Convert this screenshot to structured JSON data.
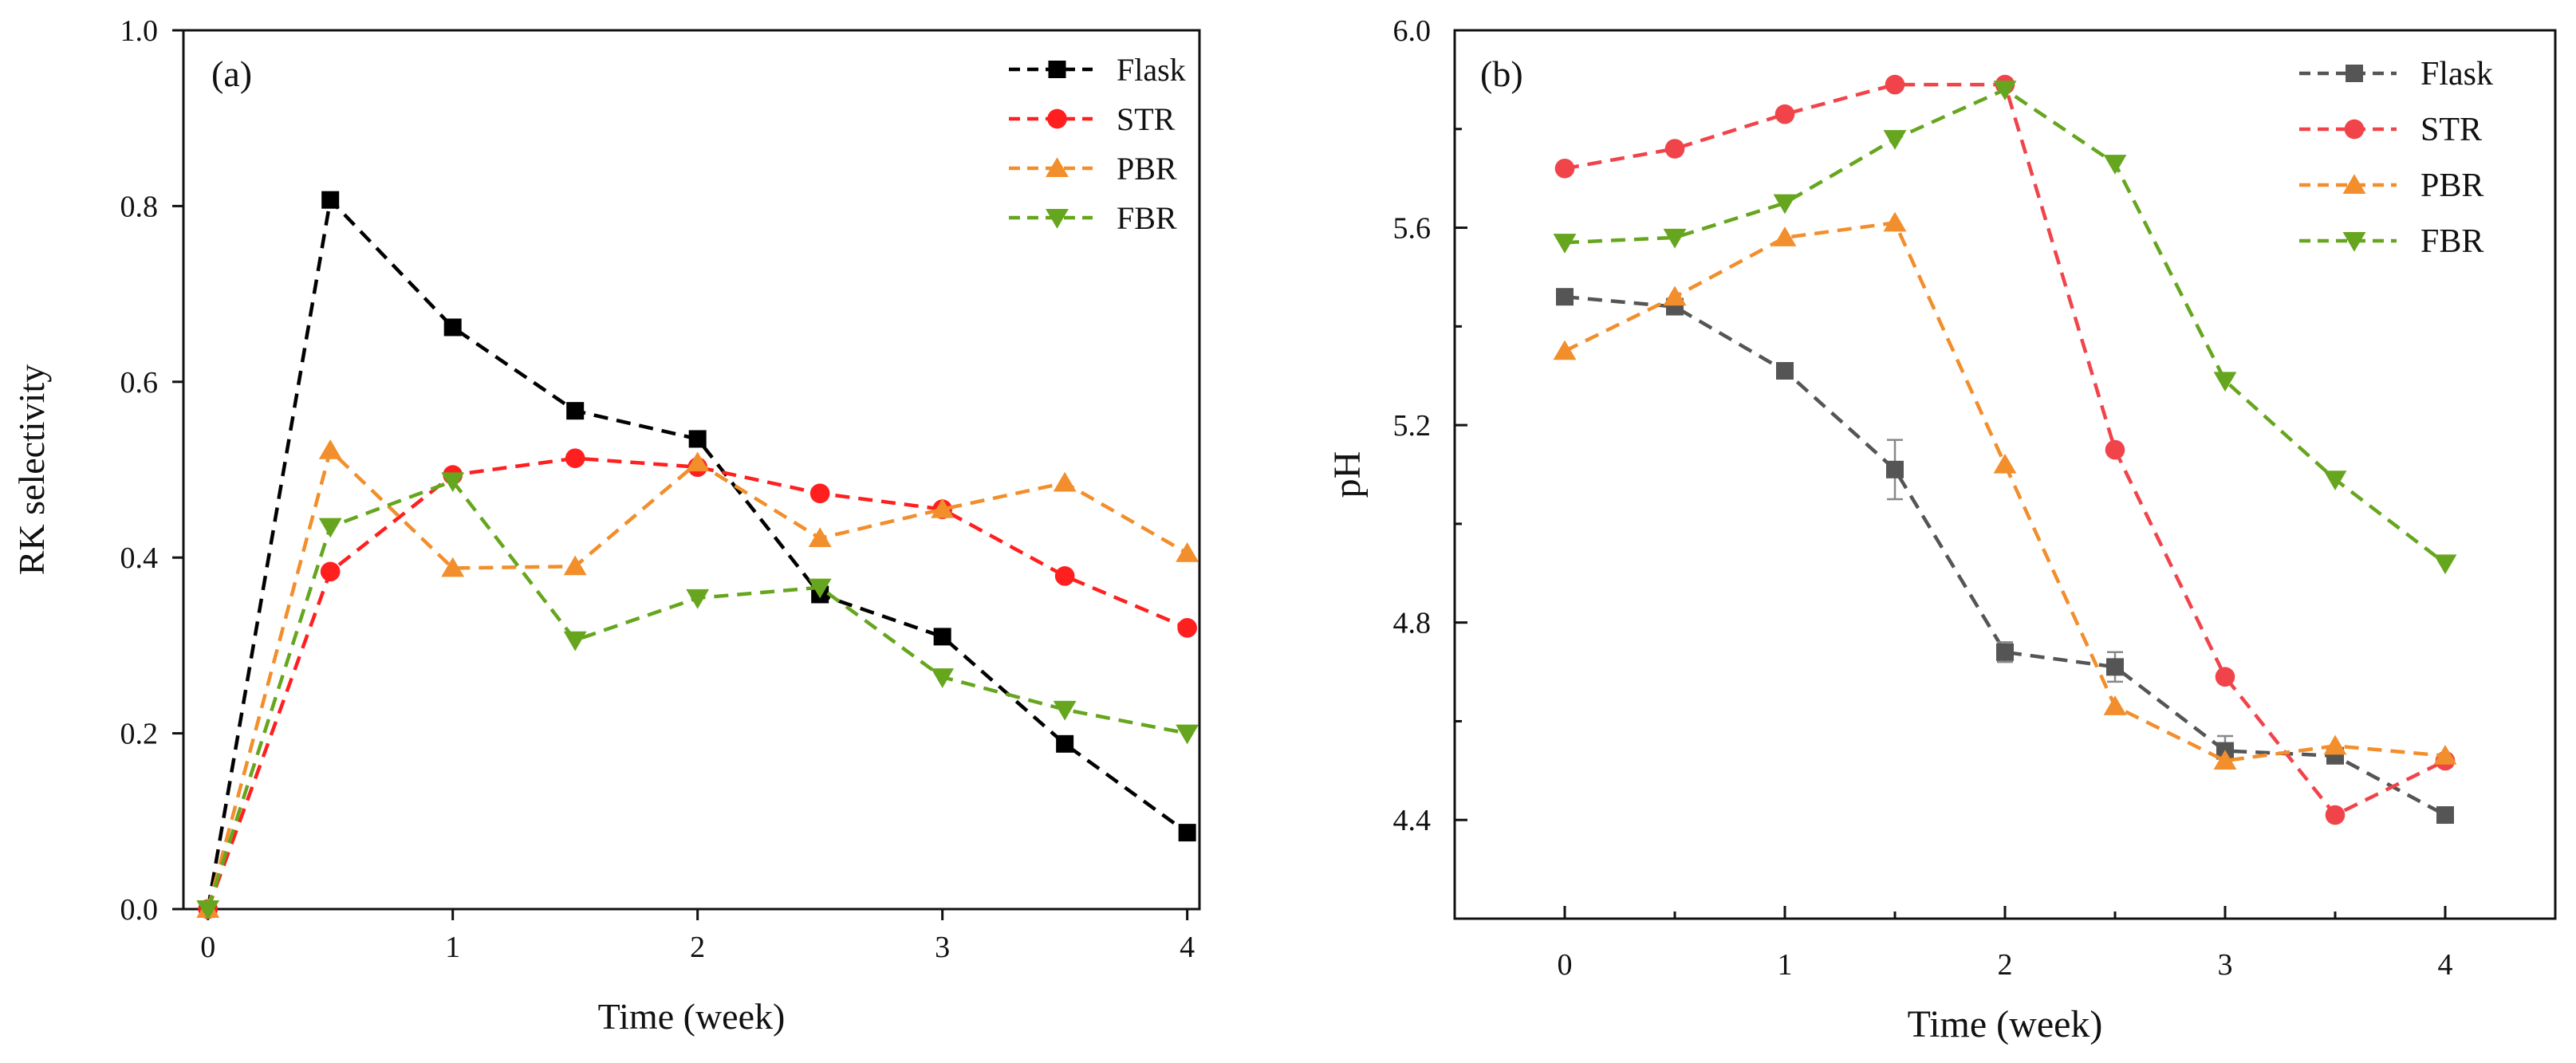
{
  "chart_data": [
    {
      "type": "line",
      "panel_label": "(a)",
      "xlabel": "Time (week)",
      "ylabel": "RK selectivity",
      "xlim": [
        -0.1,
        4.05
      ],
      "ylim": [
        0,
        1.0
      ],
      "xticks": [
        0,
        1,
        2,
        3,
        4
      ],
      "yticks": [
        0.0,
        0.2,
        0.4,
        0.6,
        0.8,
        1.0
      ],
      "ytick_labels": [
        "0.0",
        "0.2",
        "0.4",
        "0.6",
        "0.8",
        "1.0"
      ],
      "x": [
        0,
        0.5,
        1,
        1.5,
        2,
        2.5,
        3,
        3.5,
        4
      ],
      "grid": false,
      "legend_position": "top-right",
      "series": [
        {
          "name": "Flask",
          "color": "#000000",
          "marker": "square",
          "values": [
            0.0,
            0.807,
            0.662,
            0.567,
            0.535,
            0.358,
            0.31,
            0.188,
            0.087
          ]
        },
        {
          "name": "STR",
          "color": "#ff1f1f",
          "marker": "circle",
          "values": [
            0.0,
            0.384,
            0.494,
            0.513,
            0.503,
            0.473,
            0.455,
            0.379,
            0.32
          ]
        },
        {
          "name": "PBR",
          "color": "#f28e2b",
          "marker": "triangle-up",
          "values": [
            0.0,
            0.522,
            0.388,
            0.39,
            0.508,
            0.422,
            0.455,
            0.485,
            0.405
          ]
        },
        {
          "name": "FBR",
          "color": "#66a61e",
          "marker": "triangle-down",
          "values": [
            0.0,
            0.435,
            0.487,
            0.306,
            0.354,
            0.366,
            0.264,
            0.227,
            0.2
          ]
        }
      ]
    },
    {
      "type": "line",
      "panel_label": "(b)",
      "xlabel": "Time (week)",
      "ylabel": "pH",
      "xlim": [
        -0.5,
        4.5
      ],
      "ylim": [
        4.2,
        6.0
      ],
      "xticks": [
        0,
        1,
        2,
        3,
        4
      ],
      "yticks": [
        4.4,
        4.8,
        5.2,
        5.6,
        6.0
      ],
      "ytick_labels": [
        "4.4",
        "4.8",
        "5.2",
        "5.6",
        "6.0"
      ],
      "x": [
        0,
        0.5,
        1,
        1.5,
        2,
        2.5,
        3,
        3.5,
        4
      ],
      "grid": false,
      "legend_position": "top-right",
      "series": [
        {
          "name": "Flask",
          "color": "#555555",
          "marker": "square",
          "values": [
            5.46,
            5.44,
            5.31,
            5.11,
            4.74,
            4.71,
            4.54,
            4.53,
            4.41
          ],
          "errors": [
            0,
            0,
            0,
            0.06,
            0.02,
            0.03,
            0.03,
            0,
            0
          ]
        },
        {
          "name": "STR",
          "color": "#f0444a",
          "marker": "circle",
          "values": [
            5.72,
            5.76,
            5.83,
            5.89,
            5.89,
            5.15,
            4.69,
            4.41,
            4.52
          ]
        },
        {
          "name": "PBR",
          "color": "#f28e2b",
          "marker": "triangle-up",
          "values": [
            5.35,
            5.46,
            5.58,
            5.61,
            5.12,
            4.63,
            4.52,
            4.55,
            4.53
          ]
        },
        {
          "name": "FBR",
          "color": "#66a61e",
          "marker": "triangle-down",
          "values": [
            5.57,
            5.58,
            5.65,
            5.78,
            5.88,
            5.73,
            5.29,
            5.09,
            4.92
          ]
        }
      ]
    }
  ]
}
